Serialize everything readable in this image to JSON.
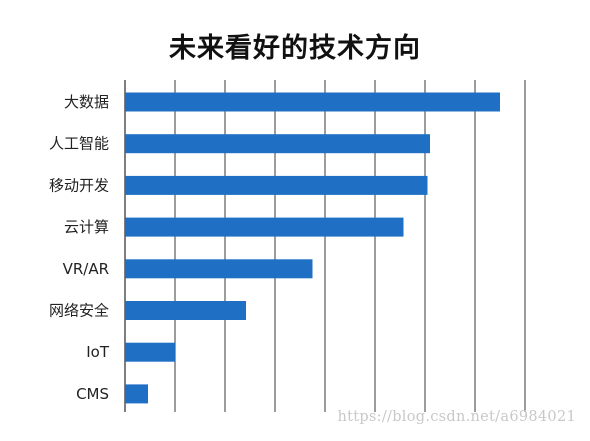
{
  "colors": {
    "bar": "#1f6fc5",
    "grid": "#3a3a3a",
    "text": "#222222"
  },
  "chart_data": {
    "type": "bar",
    "orientation": "horizontal",
    "title": "未来看好的技术方向",
    "categories": [
      "大数据",
      "人工智能",
      "移动开发",
      "云计算",
      "VR/AR",
      "网络安全",
      "IoT",
      "CMS"
    ],
    "values": [
      7.5,
      6.1,
      6.05,
      5.57,
      3.75,
      2.42,
      1.0,
      0.46
    ],
    "xlim": [
      0,
      8
    ],
    "grid": true,
    "xlabel": "",
    "ylabel": ""
  },
  "watermark": "https://blog.csdn.net/a6984021"
}
